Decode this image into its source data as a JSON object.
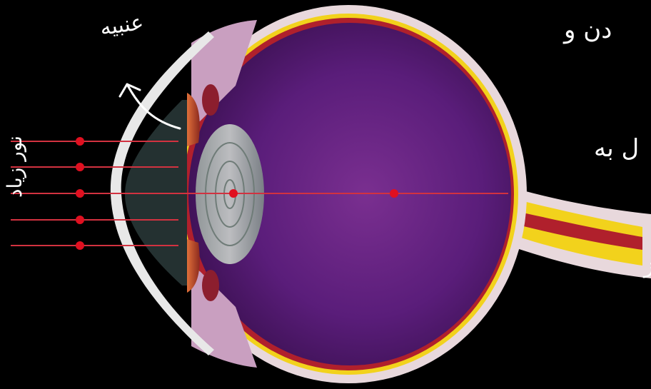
{
  "labels": {
    "cornea": "عنبيه",
    "incoming_light": "نور زیاد",
    "note_line_1": "دن و",
    "note_line_2": "ل به",
    "note_line_3": "ز"
  },
  "colors": {
    "background": "#000000",
    "vitreous": "#5a1d7a",
    "sclera": "#e8d8dc",
    "retina_yellow": "#f2d21c",
    "choroid_red": "#b0202c",
    "light_ray": "#d23240",
    "ray_marker": "#e01020",
    "handwriting": "#ffffff"
  },
  "icons": [
    "arrow-up-icon"
  ]
}
